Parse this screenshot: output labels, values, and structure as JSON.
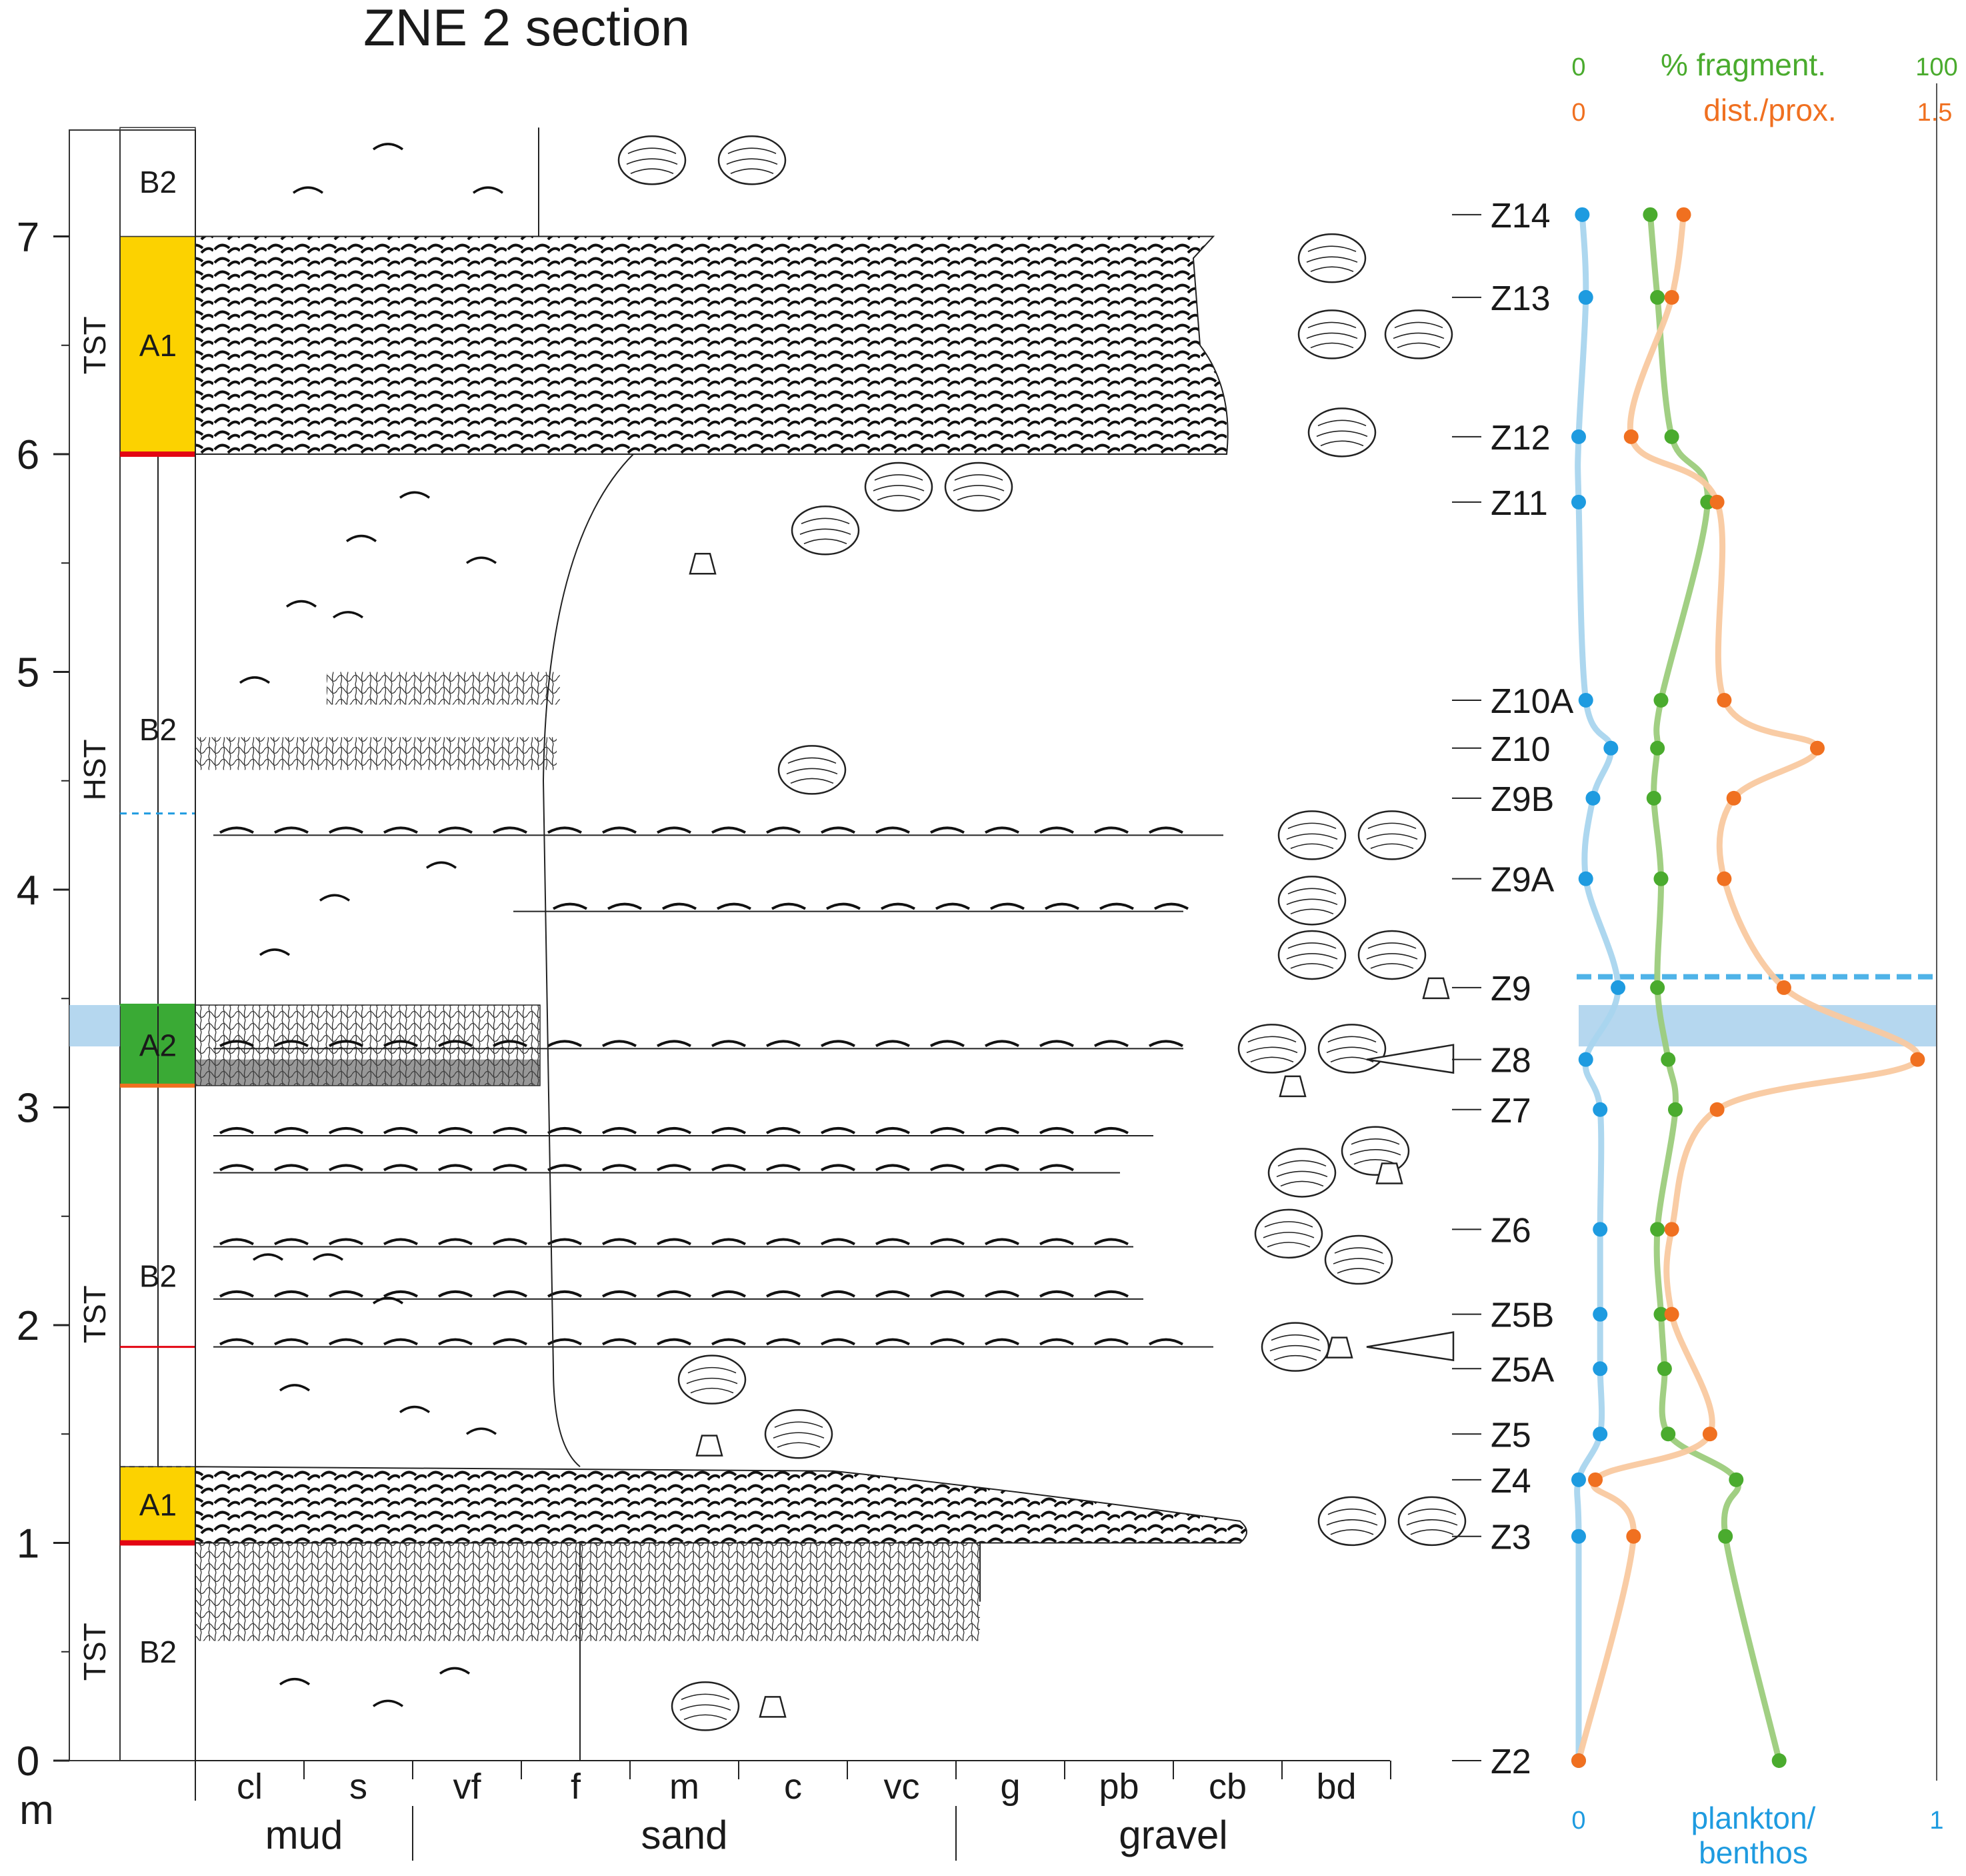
{
  "title": "ZNE 2 section",
  "depth_axis": {
    "unit": "m",
    "ticks": [
      "0",
      "1",
      "2",
      "3",
      "4",
      "5",
      "6",
      "7"
    ],
    "range": [
      0,
      7.5
    ]
  },
  "sequence_column": [
    {
      "label": "TST",
      "from": 0,
      "to": 1
    },
    {
      "label": "TST",
      "from": 1,
      "to": 3.1
    },
    {
      "label": "HST",
      "from": 3.1,
      "to": 6
    },
    {
      "label": "TST",
      "from": 6,
      "to": 7
    }
  ],
  "facies_column": [
    {
      "label": "B2",
      "from": 0,
      "to": 1,
      "color": "#ffffff"
    },
    {
      "label": "A1",
      "from": 1,
      "to": 1.35,
      "color": "#fcd200"
    },
    {
      "label": "B2",
      "from": 1.35,
      "to": 3.1,
      "color": "#ffffff"
    },
    {
      "label": "A2",
      "from": 3.1,
      "to": 3.47,
      "color": "#3aaa35"
    },
    {
      "label": "B2",
      "from": 3.47,
      "to": 6,
      "color": "#ffffff"
    },
    {
      "label": "A1",
      "from": 6,
      "to": 7,
      "color": "#fcd200"
    },
    {
      "label": "B2",
      "from": 7,
      "to": 7.5,
      "color": "#ffffff"
    }
  ],
  "grain_size": {
    "classes": [
      "cl",
      "s",
      "vf",
      "f",
      "m",
      "c",
      "vc",
      "g",
      "pb",
      "cb",
      "bd"
    ],
    "groups": [
      "mud",
      "sand",
      "gravel"
    ]
  },
  "samples": [
    "Z14",
    "Z13",
    "Z12",
    "Z11",
    "Z10A",
    "Z10",
    "Z9B",
    "Z9A",
    "Z9",
    "Z8",
    "Z7",
    "Z6",
    "Z5B",
    "Z5A",
    "Z5",
    "Z4",
    "Z3",
    "Z2"
  ],
  "right_axes": {
    "fragment_label": "% fragment.",
    "fragment_min": "0",
    "fragment_max": "100",
    "distprox_label": "dist./prox.",
    "distprox_min": "0",
    "distprox_max": "1.5",
    "plankton_label_1": "plankton/",
    "plankton_label_2": "benthos",
    "plankton_min": "0",
    "plankton_max": "1"
  },
  "colors": {
    "plankton": "#1e9be0",
    "fragment": "#4aab2e",
    "distprox": "#f07020",
    "plankton_line": "#a9d5ee",
    "fragment_line": "#9ccc7c",
    "distprox_line": "#f9c9a0",
    "band": "#9cc9ea",
    "surface_red": "#e30613"
  },
  "chart_data": {
    "type": "scatter",
    "title": "ZNE 2 section",
    "ylabel": "m",
    "ylim": [
      0,
      7.5
    ],
    "series": [
      {
        "name": "plankton/benthos",
        "xlim": [
          0,
          1
        ],
        "samples": [
          "Z14",
          "Z13",
          "Z12",
          "Z11",
          "Z10A",
          "Z10",
          "Z9B",
          "Z9A",
          "Z9",
          "Z8",
          "Z7",
          "Z6",
          "Z5B",
          "Z5A",
          "Z5",
          "Z4",
          "Z3",
          "Z2"
        ],
        "depth": [
          7.1,
          6.72,
          6.08,
          5.78,
          4.87,
          4.65,
          4.42,
          4.05,
          3.55,
          3.22,
          2.99,
          2.44,
          2.05,
          1.8,
          1.5,
          1.29,
          1.03,
          0
        ],
        "values": [
          0.01,
          0.02,
          0.0,
          0.0,
          0.02,
          0.09,
          0.04,
          0.02,
          0.11,
          0.02,
          0.06,
          0.06,
          0.06,
          0.06,
          0.06,
          0.0,
          0.0,
          0.0
        ]
      },
      {
        "name": "% fragment.",
        "xlim": [
          0,
          100
        ],
        "samples": [
          "Z14",
          "Z13",
          "Z12",
          "Z11",
          "Z10A",
          "Z10",
          "Z9B",
          "Z9A",
          "Z9",
          "Z8",
          "Z7",
          "Z6",
          "Z5B",
          "Z5A",
          "Z5",
          "Z4",
          "Z3",
          "Z2"
        ],
        "depth": [
          7.1,
          6.72,
          6.08,
          5.78,
          4.87,
          4.65,
          4.42,
          4.05,
          3.55,
          3.22,
          2.99,
          2.44,
          2.05,
          1.8,
          1.5,
          1.29,
          1.03,
          0
        ],
        "values": [
          20,
          22,
          26,
          36,
          23,
          22,
          21,
          23,
          22,
          25,
          27,
          22,
          23,
          24,
          25,
          44,
          41,
          56
        ]
      },
      {
        "name": "dist./prox.",
        "xlim": [
          0,
          1.5
        ],
        "samples": [
          "Z14",
          "Z13",
          "Z12",
          "Z11",
          "Z10A",
          "Z10",
          "Z9B",
          "Z9A",
          "Z9",
          "Z8",
          "Z7",
          "Z6",
          "Z5B",
          "Z5A",
          "Z5",
          "Z4",
          "Z3",
          "Z2"
        ],
        "depth": [
          7.1,
          6.72,
          6.08,
          5.78,
          4.87,
          4.65,
          4.42,
          4.05,
          3.55,
          3.22,
          2.99,
          2.44,
          2.05,
          1.8,
          1.5,
          1.29,
          1.03,
          0
        ],
        "values": [
          0.44,
          0.39,
          0.22,
          0.58,
          0.61,
          1.0,
          0.65,
          0.61,
          0.86,
          1.42,
          0.58,
          0.39,
          0.39,
          null,
          0.55,
          0.07,
          0.23,
          0.0
        ]
      }
    ],
    "sample_names": [
      "Z14",
      "Z13",
      "Z12",
      "Z11",
      "Z10A",
      "Z10",
      "Z9B",
      "Z9A",
      "Z9",
      "Z8",
      "Z7",
      "Z6",
      "Z5B",
      "Z5A",
      "Z5",
      "Z4",
      "Z3",
      "Z2"
    ],
    "sample_depths": [
      7.1,
      6.72,
      6.08,
      5.78,
      4.87,
      4.65,
      4.42,
      4.05,
      3.55,
      3.22,
      2.99,
      2.44,
      2.05,
      1.8,
      1.5,
      1.29,
      1.03,
      0
    ],
    "band": {
      "from": 3.28,
      "to": 3.47
    },
    "dashed_line": 3.6
  }
}
